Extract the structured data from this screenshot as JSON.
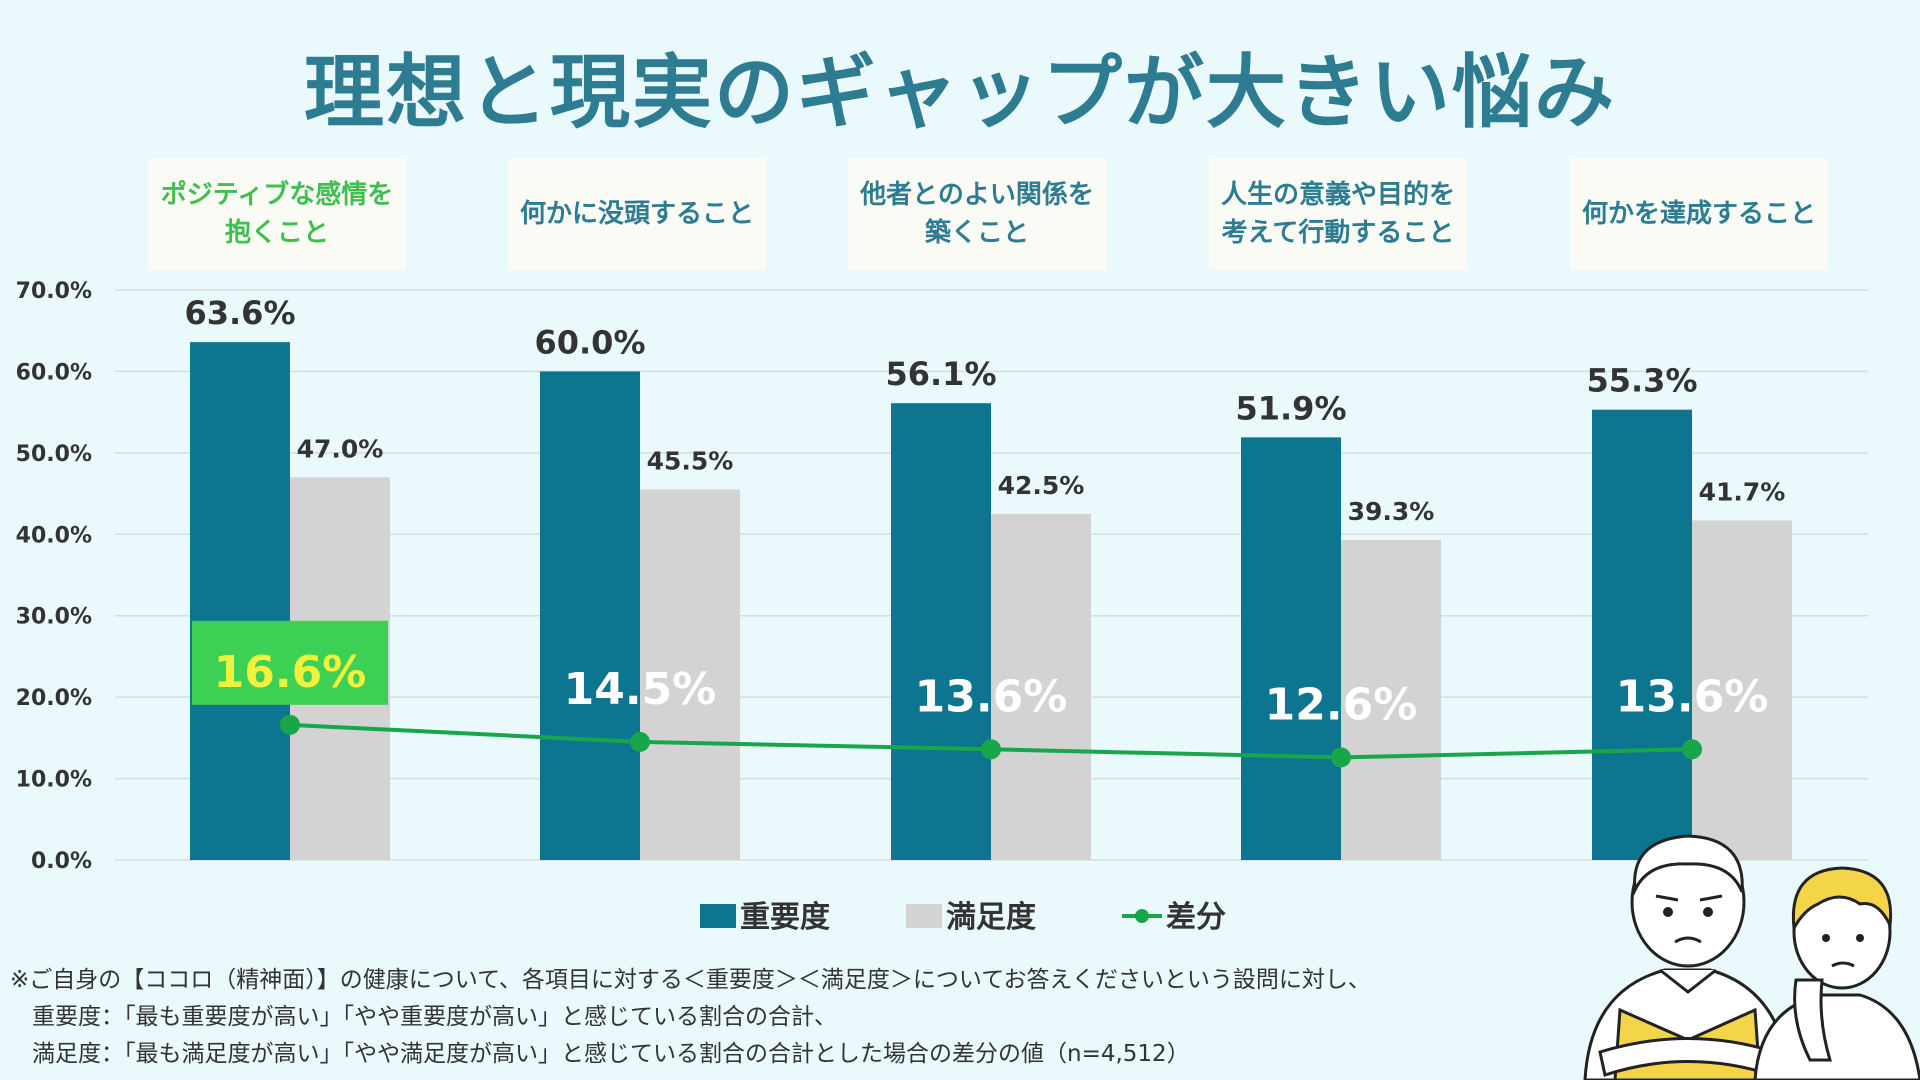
{
  "title": "理想と現実のギャップが大きい悩み",
  "chart_data": {
    "type": "bar",
    "categories": [
      "ポジティブな感情を\n抱くこと",
      "何かに没頭すること",
      "他者とのよい関係を\n築くこと",
      "人生の意義や目的を\n考えて行動すること",
      "何かを達成すること"
    ],
    "series": [
      {
        "name": "重要度",
        "type": "bar",
        "color": "#0e7591",
        "values": [
          63.6,
          60.0,
          56.1,
          51.9,
          55.3
        ],
        "labels": [
          "63.6%",
          "60.0%",
          "56.1%",
          "51.9%",
          "55.3%"
        ]
      },
      {
        "name": "満足度",
        "type": "bar",
        "color": "#d3d3d3",
        "values": [
          47.0,
          45.5,
          42.5,
          39.3,
          41.7
        ],
        "labels": [
          "47.0%",
          "45.5%",
          "42.5%",
          "39.3%",
          "41.7%"
        ]
      },
      {
        "name": "差分",
        "type": "line",
        "color": "#17a74a",
        "values": [
          16.6,
          14.5,
          13.6,
          12.6,
          13.6
        ],
        "labels": [
          "16.6%",
          "14.5%",
          "13.6%",
          "12.6%",
          "13.6%"
        ]
      }
    ],
    "ylim": [
      0,
      70
    ],
    "yticks": [
      "0.0%",
      "10.0%",
      "20.0%",
      "30.0%",
      "40.0%",
      "50.0%",
      "60.0%",
      "70.0%"
    ],
    "highlight_index": 0,
    "legend": "bottom",
    "grid": true
  },
  "footnote": [
    "※ご自身の【ココロ（精神面）】の健康について、各項目に対する＜重要度＞＜満足度＞についてお答えくださいという設問に対し、",
    "重要度：「最も重要度が高い」「やや重要度が高い」と感じている割合の合計、",
    "満足度：「最も満足度が高い」「やや満足度が高い」と感じている割合の合計とした場合の差分の値（n=4,512）"
  ],
  "colors": {
    "highlight_text": "#3fbf4f",
    "highlight_badge": "#3ecf55",
    "highlight_label": "#f2f23c"
  }
}
